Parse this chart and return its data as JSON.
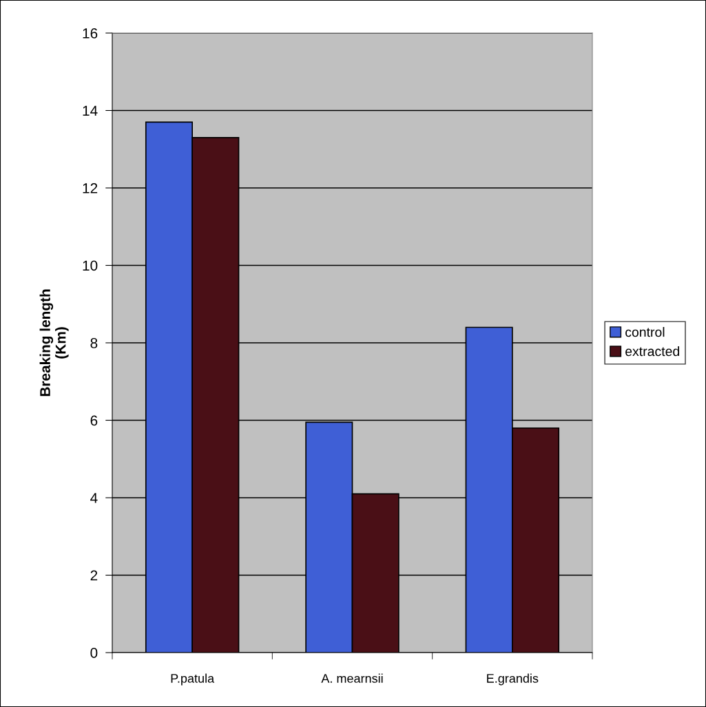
{
  "chart_data": {
    "type": "bar",
    "ylabel": "Breaking length\n(Km)",
    "categories": [
      "P.patula",
      "A. mearnsii",
      "E.grandis"
    ],
    "series": [
      {
        "name": "control",
        "color": "#3f5fd6",
        "values": [
          13.7,
          5.95,
          8.4
        ]
      },
      {
        "name": "extracted",
        "color": "#4a0f16",
        "values": [
          13.3,
          4.1,
          5.8
        ]
      }
    ],
    "ylim": [
      0,
      16
    ],
    "yticks": [
      0,
      2,
      4,
      6,
      8,
      10,
      12,
      14,
      16
    ],
    "grid": "y",
    "legend": "right"
  }
}
